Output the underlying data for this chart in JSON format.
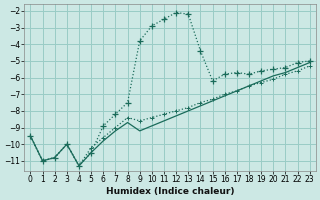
{
  "xlabel": "Humidex (Indice chaleur)",
  "bg_color": "#cce8e4",
  "grid_color": "#99ccc6",
  "line_color": "#1a6b5a",
  "xlim": [
    -0.5,
    23.5
  ],
  "ylim": [
    -11.6,
    -1.6
  ],
  "xticks": [
    0,
    1,
    2,
    3,
    4,
    5,
    6,
    7,
    8,
    9,
    10,
    11,
    12,
    13,
    14,
    15,
    16,
    17,
    18,
    19,
    20,
    21,
    22,
    23
  ],
  "yticks": [
    -11,
    -10,
    -9,
    -8,
    -7,
    -6,
    -5,
    -4,
    -3,
    -2
  ],
  "curve_main_x": [
    0,
    1,
    2,
    3,
    4,
    5,
    6,
    7,
    8,
    9,
    10,
    11,
    12,
    13,
    14,
    15,
    16,
    17,
    18,
    19,
    20,
    21,
    22,
    23
  ],
  "curve_main_y": [
    -9.5,
    -11.0,
    -10.8,
    -10.0,
    -11.3,
    -10.5,
    -8.9,
    -8.2,
    -7.5,
    -3.8,
    -2.9,
    -2.5,
    -2.1,
    -2.2,
    -4.4,
    -6.2,
    -5.8,
    -5.7,
    -5.8,
    -5.6,
    -5.5,
    -5.4,
    -5.1,
    -5.0
  ],
  "curve_trend1_x": [
    0,
    1,
    2,
    3,
    4,
    5,
    6,
    7,
    8,
    9,
    10,
    11,
    12,
    13,
    14,
    15,
    16,
    17,
    18,
    19,
    20,
    21,
    22,
    23
  ],
  "curve_trend1_y": [
    -9.5,
    -11.0,
    -10.8,
    -10.0,
    -11.3,
    -10.2,
    -9.6,
    -9.0,
    -8.4,
    -8.6,
    -8.4,
    -8.2,
    -8.0,
    -7.8,
    -7.5,
    -7.3,
    -7.0,
    -6.8,
    -6.5,
    -6.3,
    -6.1,
    -5.8,
    -5.6,
    -5.3
  ],
  "curve_trend2_x": [
    0,
    1,
    2,
    3,
    4,
    5,
    6,
    7,
    8,
    9,
    10,
    11,
    12,
    13,
    14,
    15,
    16,
    17,
    18,
    19,
    20,
    21,
    22,
    23
  ],
  "curve_trend2_y": [
    -9.5,
    -11.0,
    -10.8,
    -10.0,
    -11.3,
    -10.5,
    -9.8,
    -9.2,
    -8.7,
    -9.2,
    -8.9,
    -8.6,
    -8.3,
    -8.0,
    -7.7,
    -7.4,
    -7.1,
    -6.8,
    -6.5,
    -6.2,
    -5.9,
    -5.7,
    -5.4,
    -5.1
  ]
}
